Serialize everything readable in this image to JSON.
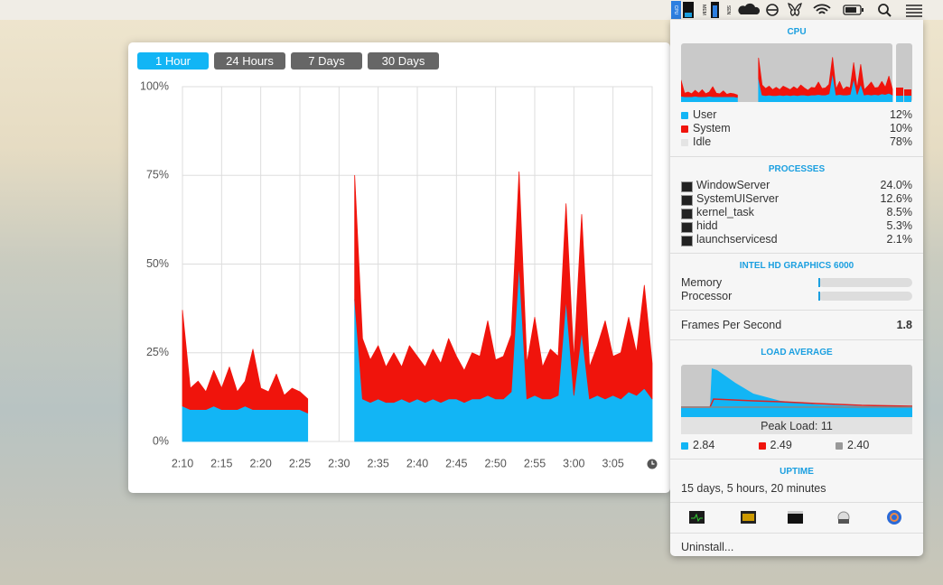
{
  "menu_bar": {
    "cpu_label": "CPU",
    "mem_label": "MEM",
    "sen_label": "SEN"
  },
  "window": {
    "buttons": [
      "1 Hour",
      "24 Hours",
      "7 Days",
      "30 Days"
    ]
  },
  "chart_data": {
    "type": "area",
    "stacked": true,
    "categories": [
      "2:10",
      null,
      null,
      null,
      null,
      "2:15",
      null,
      null,
      null,
      null,
      "2:20",
      null,
      null,
      null,
      null,
      "2:25",
      null,
      null,
      null,
      null,
      "2:30",
      null,
      null,
      null,
      null,
      "2:35",
      null,
      null,
      null,
      null,
      "2:40",
      null,
      null,
      null,
      null,
      "2:45",
      null,
      null,
      null,
      null,
      "2:50",
      null,
      null,
      null,
      null,
      "2:55",
      null,
      null,
      null,
      null,
      "3:00",
      null,
      null,
      null,
      null,
      "3:05",
      null,
      null,
      null,
      null,
      null
    ],
    "series": [
      {
        "color": "#12b5f5",
        "values": [
          10,
          9,
          9,
          9,
          10,
          9,
          9,
          9,
          10,
          9,
          9,
          9,
          9,
          9,
          9,
          9,
          8,
          null,
          null,
          null,
          null,
          null,
          40,
          12,
          11,
          12,
          11,
          11,
          12,
          11,
          12,
          11,
          12,
          11,
          12,
          12,
          11,
          12,
          12,
          13,
          12,
          12,
          14,
          50,
          12,
          13,
          12,
          12,
          13,
          40,
          13,
          31,
          12,
          13,
          12,
          13,
          12,
          14,
          13,
          15,
          12
        ]
      },
      {
        "color": "#f0140c",
        "values": [
          27,
          6,
          8,
          5,
          10,
          6,
          12,
          5,
          7,
          17,
          6,
          5,
          10,
          4,
          6,
          5,
          4,
          null,
          null,
          null,
          null,
          null,
          35,
          17,
          12,
          15,
          10,
          14,
          9,
          16,
          12,
          10,
          14,
          11,
          17,
          12,
          9,
          13,
          12,
          21,
          11,
          12,
          16,
          26,
          10,
          22,
          9,
          14,
          11,
          27,
          10,
          33,
          9,
          14,
          22,
          11,
          13,
          21,
          12,
          29,
          10
        ]
      }
    ],
    "ylim": [
      0,
      100
    ],
    "yticks": [
      {
        "value": 0,
        "label": "0%"
      },
      {
        "value": 25,
        "label": "25%"
      },
      {
        "value": 50,
        "label": "50%"
      },
      {
        "value": 75,
        "label": "75%"
      },
      {
        "value": 100,
        "label": "100%"
      }
    ],
    "grid": true
  },
  "panel": {
    "cpu": {
      "title": "CPU",
      "legend": [
        {
          "name": "User",
          "value": "12%"
        },
        {
          "name": "System",
          "value": "10%"
        },
        {
          "name": "Idle",
          "value": "78%"
        }
      ]
    },
    "processes": {
      "title": "PROCESSES",
      "rows": [
        {
          "name": "WindowServer",
          "value": "24.0%"
        },
        {
          "name": "SystemUIServer",
          "value": "12.6%"
        },
        {
          "name": "kernel_task",
          "value": "8.5%"
        },
        {
          "name": "hidd",
          "value": "5.3%"
        },
        {
          "name": "launchservicesd",
          "value": "2.1%"
        }
      ]
    },
    "gpu": {
      "title": "INTEL HD GRAPHICS 6000",
      "memory_label": "Memory",
      "processor_label": "Processor"
    },
    "fps": {
      "label": "Frames Per Second",
      "value": "1.8"
    },
    "load": {
      "title": "LOAD AVERAGE",
      "peak": "Peak Load: 11",
      "values": [
        "2.84",
        "2.49",
        "2.40"
      ]
    },
    "uptime": {
      "title": "UPTIME",
      "text": "15 days, 5 hours, 20 minutes"
    },
    "uninstall": "Uninstall..."
  }
}
